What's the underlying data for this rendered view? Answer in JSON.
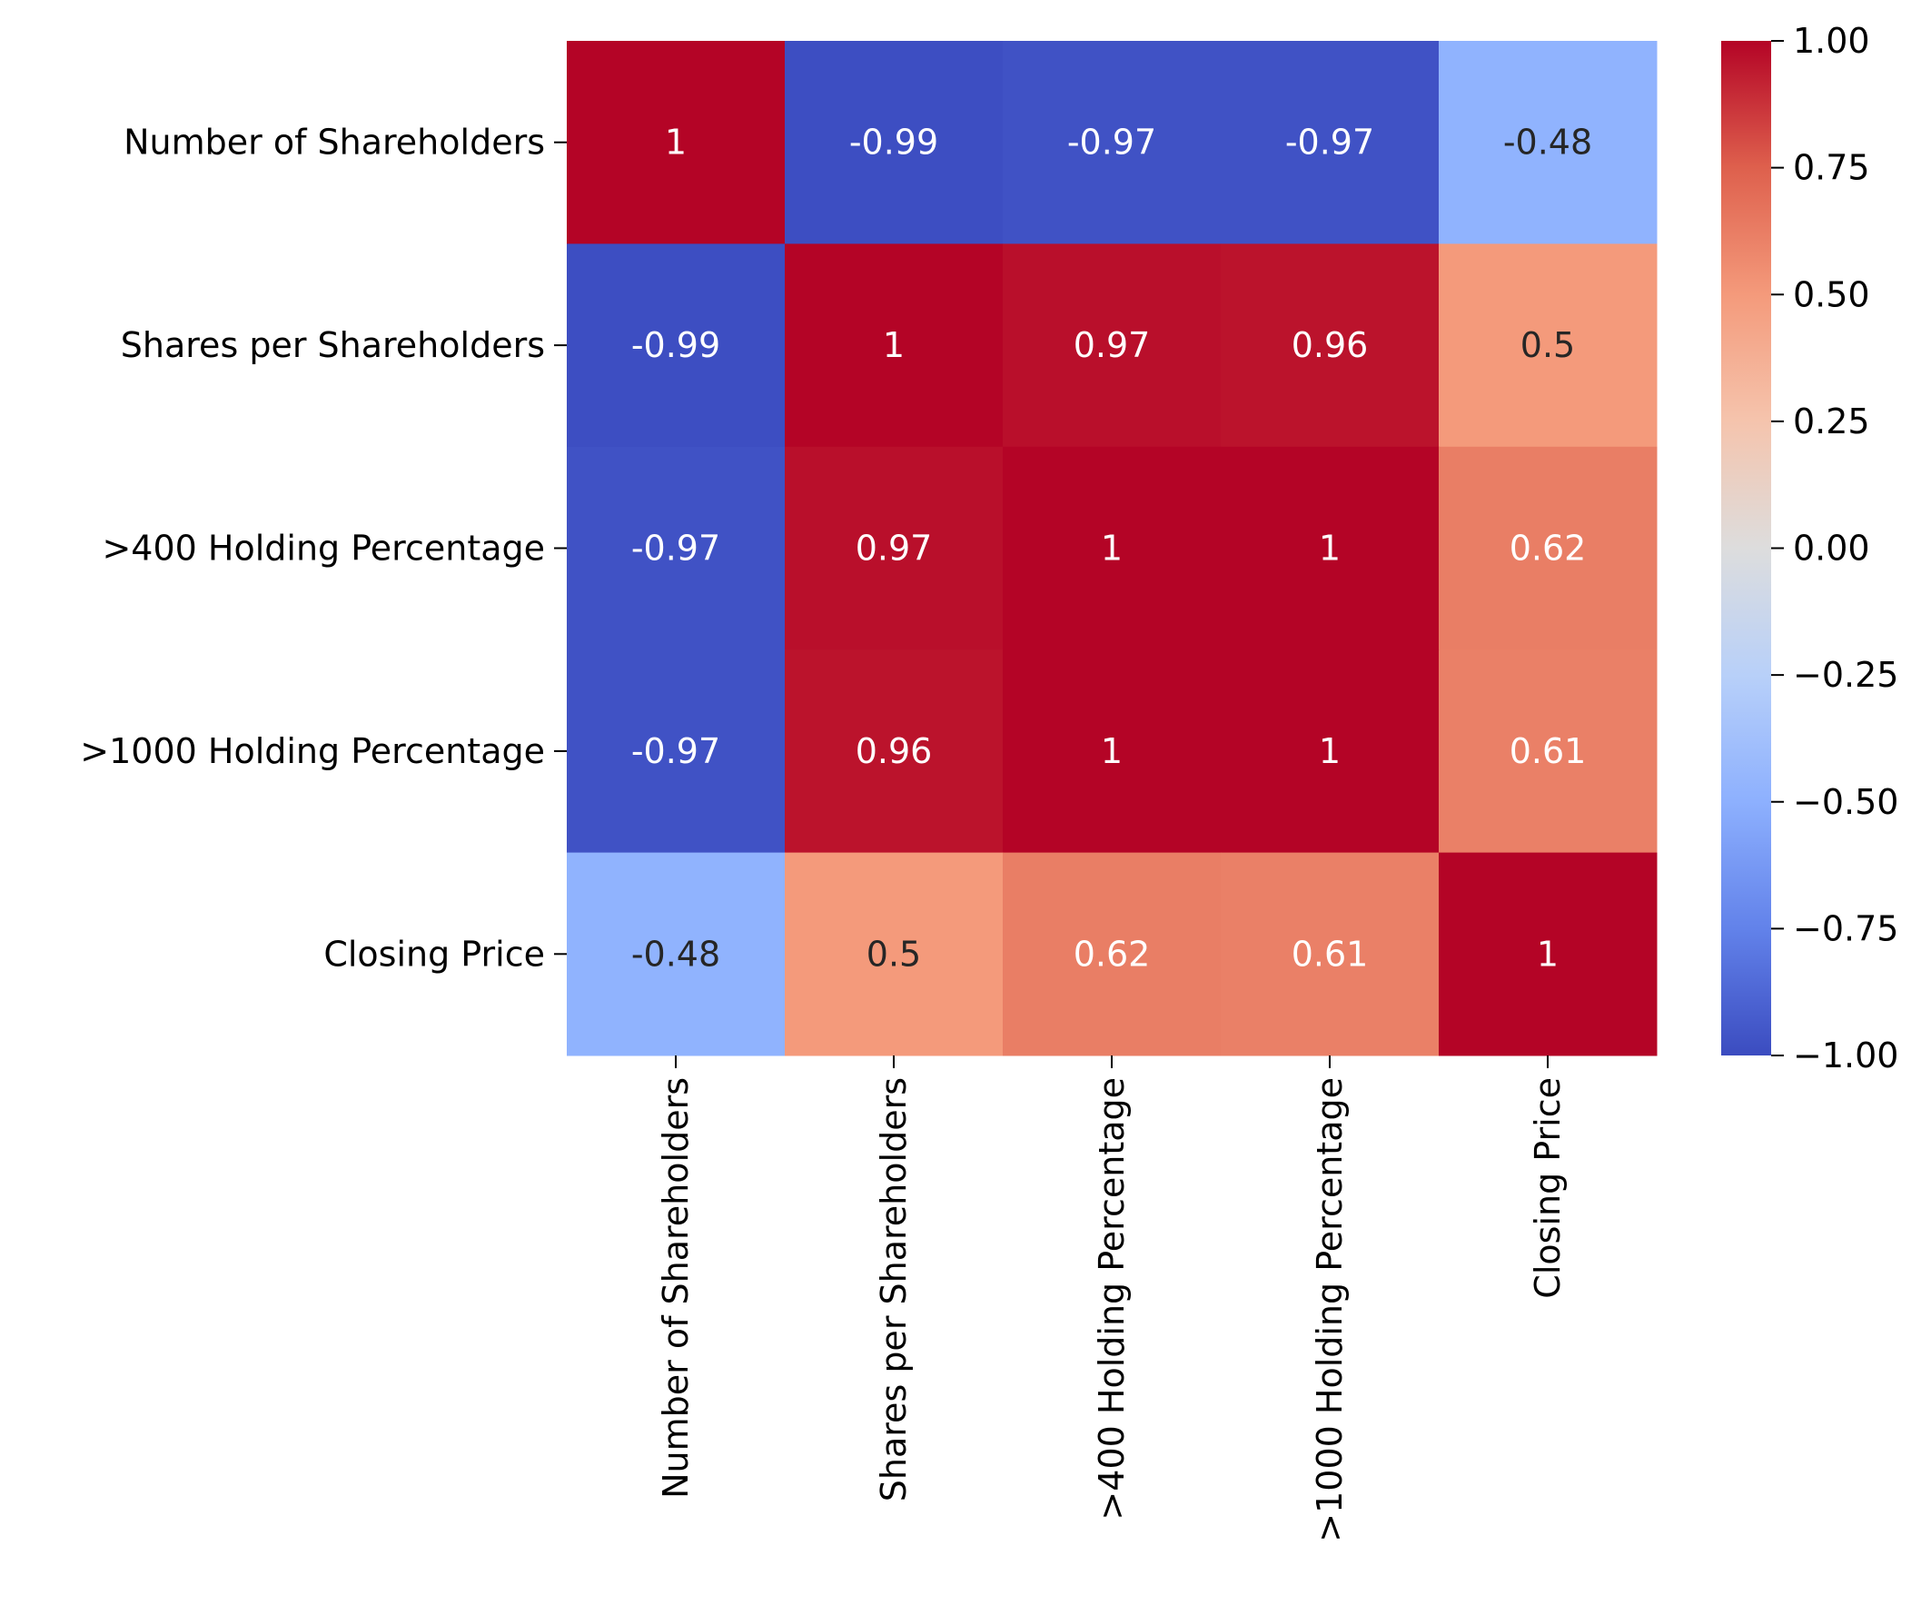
{
  "chart_data": {
    "type": "heatmap",
    "title": "",
    "xlabel": "",
    "ylabel": "",
    "labels": [
      "Number of Shareholders",
      "Shares per Shareholders",
      ">400 Holding Percentage",
      ">1000 Holding Percentage",
      "Closing Price"
    ],
    "matrix": [
      [
        1,
        -0.99,
        -0.97,
        -0.97,
        -0.48
      ],
      [
        -0.99,
        1,
        0.97,
        0.96,
        0.5
      ],
      [
        -0.97,
        0.97,
        1,
        1,
        0.62
      ],
      [
        -0.97,
        0.96,
        1,
        1,
        0.61
      ],
      [
        -0.48,
        0.5,
        0.62,
        0.61,
        1
      ]
    ],
    "annotations": [
      [
        "1",
        "-0.99",
        "-0.97",
        "-0.97",
        "-0.48"
      ],
      [
        "-0.99",
        "1",
        "0.97",
        "0.96",
        "0.5"
      ],
      [
        "-0.97",
        "0.97",
        "1",
        "1",
        "0.62"
      ],
      [
        "-0.97",
        "0.96",
        "1",
        "1",
        "0.61"
      ],
      [
        "-0.48",
        "0.5",
        "0.62",
        "0.61",
        "1"
      ]
    ],
    "colormap": "coolwarm",
    "vmin": -1.0,
    "vmax": 1.0,
    "colorbar_ticks": [
      1.0,
      0.75,
      0.5,
      0.25,
      0.0,
      -0.25,
      -0.5,
      -0.75,
      -1.0
    ],
    "colorbar_tick_labels": [
      "1.00",
      "0.75",
      "0.50",
      "0.25",
      "0.00",
      "−0.25",
      "−0.50",
      "−0.75",
      "−1.00"
    ],
    "legend": "colorbar-right",
    "grid": false,
    "colors": {
      "min": "#3b4cc0",
      "mid": "#dddddd",
      "max": "#b40426",
      "text_light": "#ffffff",
      "text_dark": "#262626",
      "axis": "#000000"
    }
  }
}
